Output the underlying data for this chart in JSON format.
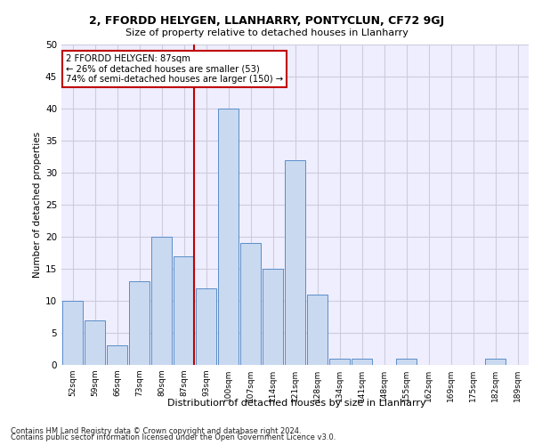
{
  "title1": "2, FFORDD HELYGEN, LLANHARRY, PONTYCLUN, CF72 9GJ",
  "title2": "Size of property relative to detached houses in Llanharry",
  "xlabel": "Distribution of detached houses by size in Llanharry",
  "ylabel": "Number of detached properties",
  "categories": [
    "52sqm",
    "59sqm",
    "66sqm",
    "73sqm",
    "80sqm",
    "87sqm",
    "93sqm",
    "100sqm",
    "107sqm",
    "114sqm",
    "121sqm",
    "128sqm",
    "134sqm",
    "141sqm",
    "148sqm",
    "155sqm",
    "162sqm",
    "169sqm",
    "175sqm",
    "182sqm",
    "189sqm"
  ],
  "values": [
    10,
    7,
    3,
    13,
    20,
    17,
    12,
    40,
    19,
    15,
    32,
    11,
    1,
    1,
    0,
    1,
    0,
    0,
    0,
    1,
    0
  ],
  "highlight_index": 5,
  "highlight_color": "#c00000",
  "bar_color": "#c9d9f0",
  "bar_edge_color": "#5b8dc8",
  "annotation_text": "2 FFORDD HELYGEN: 87sqm\n← 26% of detached houses are smaller (53)\n74% of semi-detached houses are larger (150) →",
  "ylim": [
    0,
    50
  ],
  "yticks": [
    0,
    5,
    10,
    15,
    20,
    25,
    30,
    35,
    40,
    45,
    50
  ],
  "footnote1": "Contains HM Land Registry data © Crown copyright and database right 2024.",
  "footnote2": "Contains public sector information licensed under the Open Government Licence v3.0.",
  "bg_color": "#eeeeff",
  "grid_color": "#ccccdd"
}
